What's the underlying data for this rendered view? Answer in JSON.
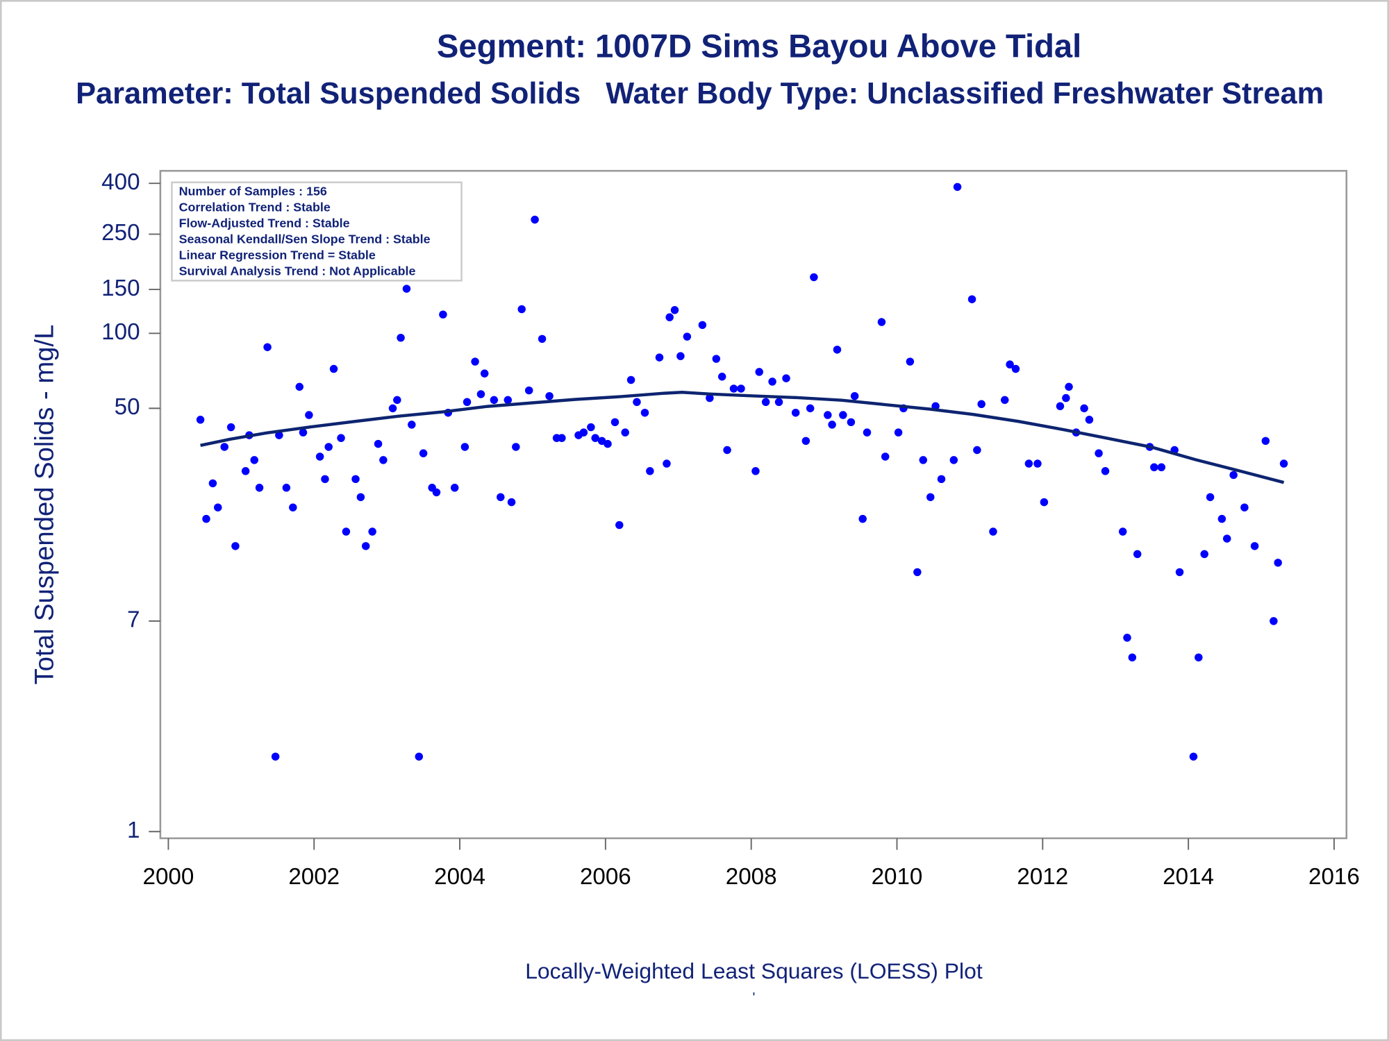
{
  "chart_data": {
    "type": "scatter",
    "title": "Segment: 1007D  Sims Bayou Above Tidal",
    "subtitle": "Parameter: Total Suspended Solids   Water Body Type: Unclassified Freshwater Stream",
    "y_label": "Total Suspended Solids - mg/L",
    "footnote": "Locally-Weighted Least Squares (LOESS) Plot",
    "footnote2": "'",
    "inset_lines": [
      "Number of Samples : 156",
      "Correlation Trend : Stable",
      "Flow-Adjusted Trend : Stable",
      "Seasonal Kendall/Sen Slope Trend : Stable",
      "Linear Regression Trend = Stable",
      "Survival Analysis Trend : Not Applicable"
    ],
    "log_y": true,
    "xlim": [
      1999.89,
      2016.17
    ],
    "xticks": [
      2000,
      2002,
      2004,
      2006,
      2008,
      2010,
      2012,
      2014,
      2016
    ],
    "ylim": [
      0.94,
      449
    ],
    "yticks": [
      1,
      7,
      50,
      100,
      150,
      250,
      400
    ],
    "series": [
      {
        "type": "scatter",
        "color": "#0000ff",
        "x": [
          2000.44,
          2000.52,
          2000.61,
          2000.68,
          2000.77,
          2000.86,
          2000.92,
          2001.06,
          2001.11,
          2001.18,
          2001.25,
          2001.36,
          2001.47,
          2001.52,
          2001.62,
          2001.71,
          2001.8,
          2001.85,
          2001.93,
          2002.08,
          2002.15,
          2002.2,
          2002.27,
          2002.37,
          2002.44,
          2002.57,
          2002.64,
          2002.71,
          2002.8,
          2002.88,
          2002.95,
          2003.08,
          2003.14,
          2003.19,
          2003.27,
          2003.34,
          2003.44,
          2003.5,
          2003.62,
          2003.68,
          2003.77,
          2003.84,
          2003.93,
          2004.07,
          2004.1,
          2004.21,
          2004.29,
          2004.34,
          2004.47,
          2004.56,
          2004.66,
          2004.71,
          2004.77,
          2004.85,
          2004.95,
          2005.03,
          2005.13,
          2005.23,
          2005.33,
          2005.4,
          2005.63,
          2005.7,
          2005.8,
          2005.86,
          2005.95,
          2006.03,
          2006.13,
          2006.19,
          2006.27,
          2006.35,
          2006.43,
          2006.54,
          2006.61,
          2006.74,
          2006.84,
          2006.88,
          2006.95,
          2007.03,
          2007.12,
          2007.33,
          2007.43,
          2007.52,
          2007.6,
          2007.67,
          2007.76,
          2007.86,
          2008.06,
          2008.11,
          2008.2,
          2008.29,
          2008.38,
          2008.48,
          2008.61,
          2008.75,
          2008.81,
          2008.86,
          2009.05,
          2009.11,
          2009.18,
          2009.26,
          2009.37,
          2009.42,
          2009.53,
          2009.59,
          2009.79,
          2009.84,
          2010.02,
          2010.09,
          2010.18,
          2010.28,
          2010.36,
          2010.46,
          2010.53,
          2010.61,
          2010.78,
          2010.83,
          2011.03,
          2011.1,
          2011.16,
          2011.32,
          2011.48,
          2011.55,
          2011.63,
          2011.81,
          2011.93,
          2012.02,
          2012.24,
          2012.32,
          2012.36,
          2012.46,
          2012.57,
          2012.64,
          2012.77,
          2012.86,
          2013.1,
          2013.16,
          2013.23,
          2013.3,
          2013.47,
          2013.53,
          2013.63,
          2013.81,
          2013.88,
          2014.07,
          2014.14,
          2014.22,
          2014.3,
          2014.46,
          2014.53,
          2014.62,
          2014.77,
          2014.91,
          2015.06,
          2015.17,
          2015.23,
          2015.31
        ],
        "values": [
          45,
          18,
          25,
          20,
          35,
          42,
          14,
          28,
          39,
          31,
          24,
          88,
          2,
          39,
          24,
          20,
          61,
          40,
          47,
          32,
          26,
          35,
          72,
          38,
          16,
          26,
          22,
          14,
          16,
          36,
          31,
          50,
          54,
          96,
          151,
          43,
          2,
          33,
          24,
          23,
          119,
          48,
          24,
          35,
          53,
          77,
          57,
          69,
          54,
          22,
          54,
          21,
          35,
          125,
          59,
          286,
          95,
          56,
          38,
          38,
          39,
          40,
          42,
          38,
          37,
          36,
          44,
          17,
          40,
          65,
          53,
          48,
          28,
          80,
          30,
          116,
          124,
          81,
          97,
          108,
          55,
          79,
          67,
          34,
          60,
          60,
          28,
          70,
          53,
          64,
          53,
          66,
          48,
          37,
          50,
          168,
          47,
          43,
          86,
          47,
          44,
          56,
          18,
          40,
          111,
          32,
          40,
          50,
          77,
          11,
          31,
          22,
          51,
          26,
          31,
          387,
          137,
          34,
          52,
          16,
          54,
          75,
          72,
          30,
          30,
          21,
          51,
          55,
          61,
          40,
          50,
          45,
          33,
          28,
          16,
          6,
          5,
          13,
          35,
          29,
          29,
          34,
          11,
          2,
          5,
          13,
          22,
          18,
          15,
          27,
          20,
          14,
          37,
          7,
          12,
          30
        ]
      },
      {
        "type": "line",
        "color": "#0d2470",
        "x": [
          2000.44,
          2000.85,
          2001.34,
          2001.95,
          2002.56,
          2003.16,
          2003.77,
          2004.38,
          2004.99,
          2005.59,
          2006.2,
          2006.81,
          2007.05,
          2007.42,
          2008.02,
          2008.63,
          2009.24,
          2009.85,
          2010.46,
          2011.06,
          2011.67,
          2012.28,
          2012.89,
          2013.5,
          2014.1,
          2014.71,
          2015.31
        ],
        "values": [
          35.5,
          37.6,
          39.8,
          42.1,
          44.3,
          46.5,
          48.4,
          50.9,
          52.6,
          54.3,
          55.7,
          57.5,
          58.0,
          57.1,
          56.1,
          55.2,
          53.9,
          51.7,
          49.6,
          47.2,
          44.3,
          41.1,
          37.9,
          34.9,
          31.1,
          28.0,
          25.2
        ]
      }
    ]
  }
}
